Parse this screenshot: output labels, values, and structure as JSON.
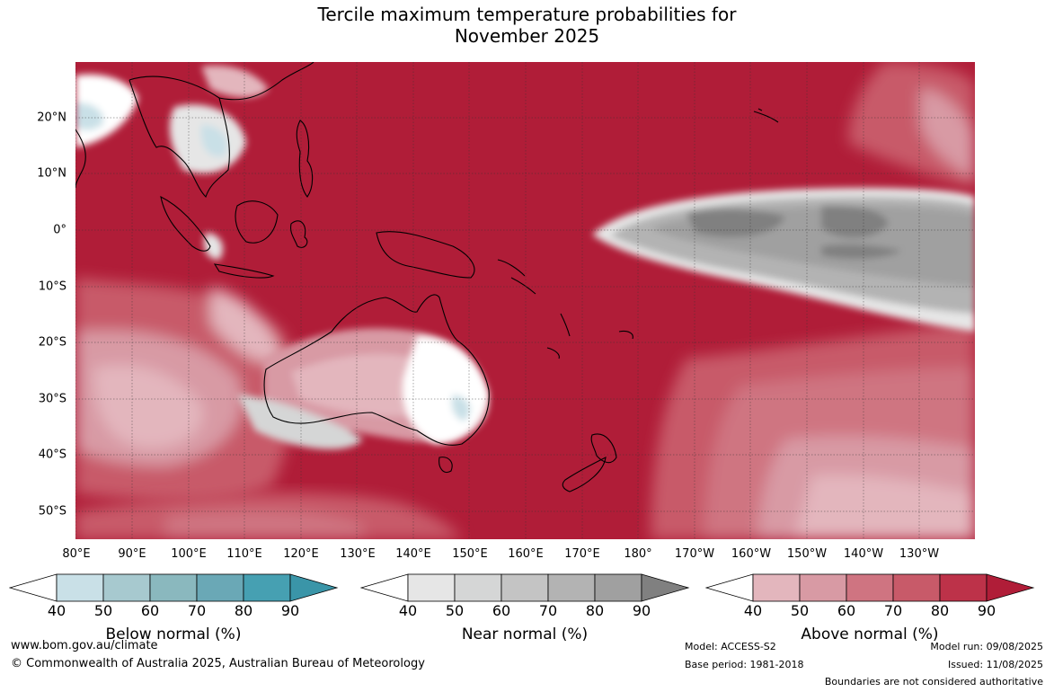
{
  "title": {
    "line1": "Tercile maximum temperature probabilities for",
    "line2": "November 2025"
  },
  "axes": {
    "lat_labels": [
      "20°N",
      "10°N",
      "0°",
      "10°S",
      "20°S",
      "30°S",
      "40°S",
      "50°S"
    ],
    "lon_labels": [
      "80°E",
      "90°E",
      "100°E",
      "110°E",
      "120°E",
      "130°E",
      "140°E",
      "150°E",
      "160°E",
      "170°E",
      "180°",
      "170°W",
      "160°W",
      "150°W",
      "140°W",
      "130°W"
    ]
  },
  "colorbars": [
    {
      "label": "Below normal (%)",
      "ticks": [
        "40",
        "50",
        "60",
        "70",
        "80",
        "90"
      ],
      "colors": [
        "#ffffff",
        "#c9e0e7",
        "#a7c9cf",
        "#8ab8be",
        "#6aa8b6",
        "#46a0b2",
        "#3a95a8"
      ]
    },
    {
      "label": "Near normal (%)",
      "ticks": [
        "40",
        "50",
        "60",
        "70",
        "80",
        "90"
      ],
      "colors": [
        "#ffffff",
        "#e6e6e6",
        "#d5d6d6",
        "#c4c4c4",
        "#b3b3b3",
        "#a0a0a0",
        "#808080"
      ]
    },
    {
      "label": "Above normal (%)",
      "ticks": [
        "40",
        "50",
        "60",
        "70",
        "80",
        "90"
      ],
      "colors": [
        "#ffffff",
        "#e3b6bd",
        "#d89aa4",
        "#cf7481",
        "#c85a69",
        "#bd3249",
        "#b01d38"
      ]
    }
  ],
  "footer": {
    "website": "www.bom.gov.au/climate",
    "copyright": "© Commonwealth of Australia 2025, Australian Bureau of Meteorology",
    "model": "Model: ACCESS-S2",
    "base_period": "Base period: 1981-2018",
    "model_run": "Model run: 09/08/2025",
    "issued": "Issued: 11/08/2025",
    "boundaries": "Boundaries are not considered authoritative"
  }
}
